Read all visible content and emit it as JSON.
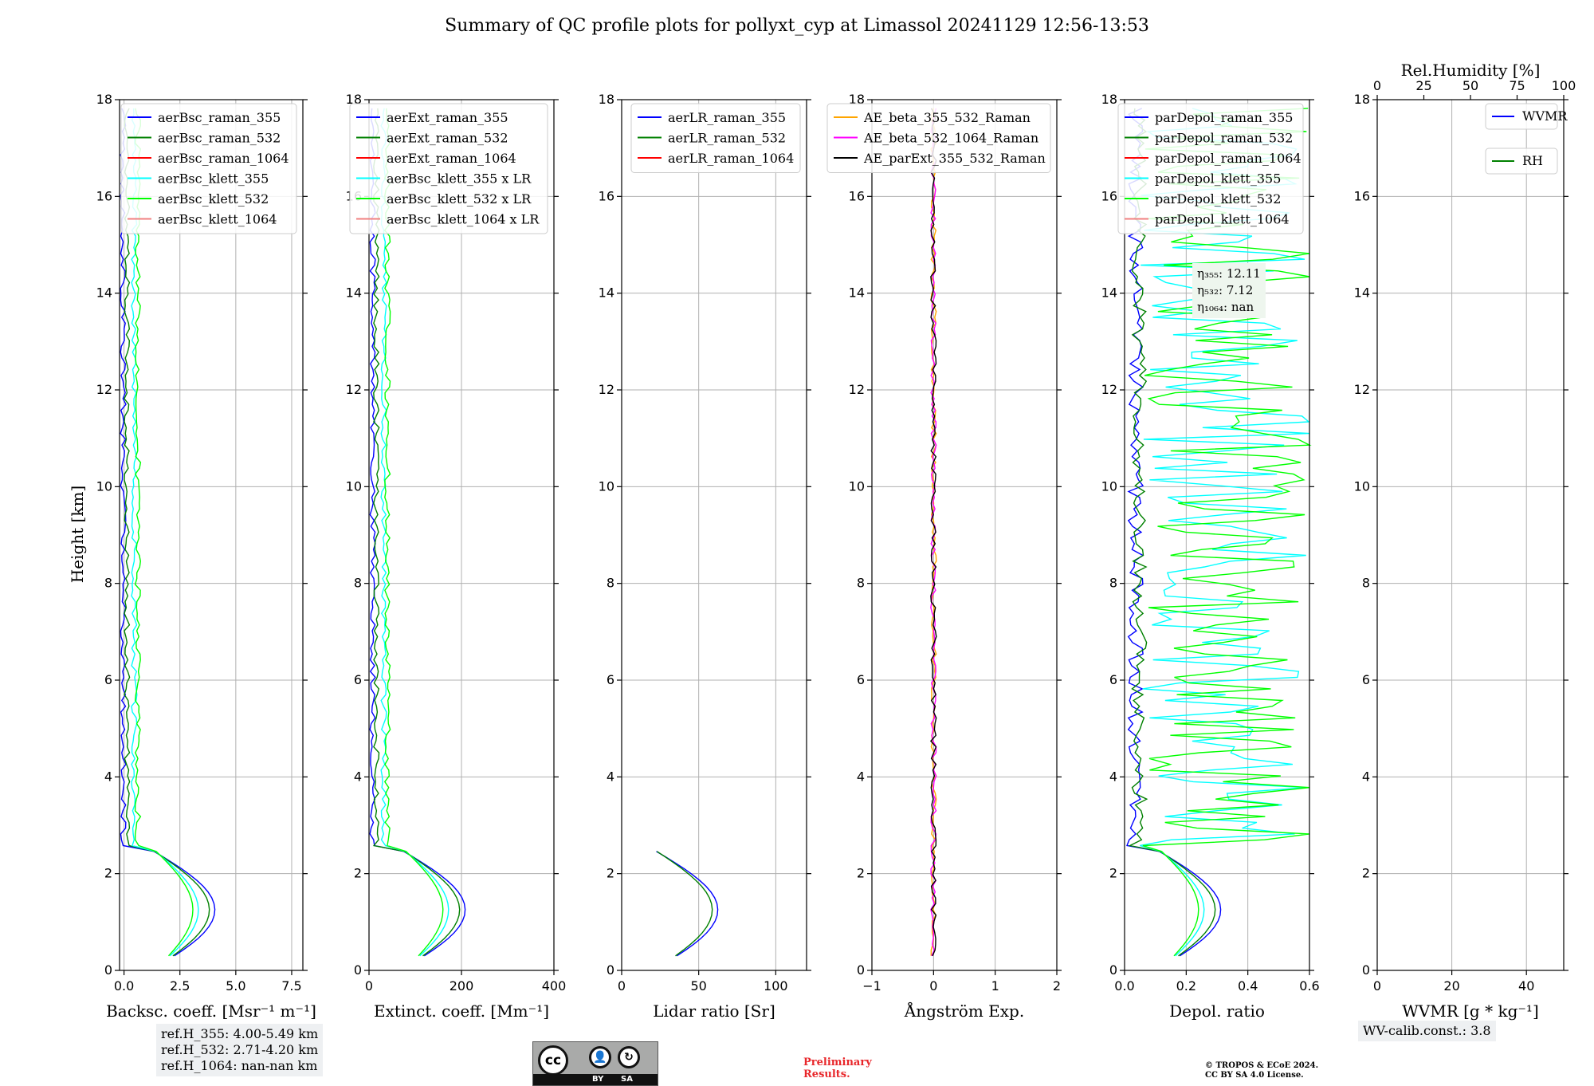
{
  "figure": {
    "title": "Summary of QC profile plots for pollyxt_cyp at Limassol 20241129 12:56-13:53",
    "ylabel": "Height [km]",
    "ref_heights": [
      "ref.H_355: 4.00-5.49 km",
      "ref.H_532: 2.71-4.20 km",
      "ref.H_1064: nan-nan km"
    ],
    "eta": [
      "η₃₅₅: 12.11",
      "η₅₃₂: 7.12",
      "η₁₀₆₄: nan"
    ],
    "wv_calib": "WV-calib.const.: 3.8",
    "preliminary": [
      "Preliminary",
      "Results."
    ],
    "copyright": [
      "© TROPOS & ECoE 2024.",
      "CC BY SA 4.0 License."
    ],
    "license_badge": {
      "cc": "cc",
      "by": "BY",
      "sa": "SA"
    }
  },
  "chart_data": [
    {
      "type": "line",
      "xlabel": "Backsc. coeff. [Msr⁻¹ m⁻¹]",
      "xlim": [
        -0.2,
        8.0
      ],
      "xticks": [
        0,
        2.5,
        5.0,
        7.5
      ],
      "xtick_labels": [
        "0.0",
        "2.5",
        "5.0",
        "7.5"
      ],
      "ylim": [
        0,
        18
      ],
      "yticks": [
        0,
        2,
        4,
        6,
        8,
        10,
        12,
        14,
        16,
        18
      ],
      "legend": "top-right",
      "series": [
        {
          "name": "aerBsc_raman_355",
          "color": "#0000ff"
        },
        {
          "name": "aerBsc_raman_532",
          "color": "#008000"
        },
        {
          "name": "aerBsc_raman_1064",
          "color": "#ff0000"
        },
        {
          "name": "aerBsc_klett_355",
          "color": "#00ffff"
        },
        {
          "name": "aerBsc_klett_532",
          "color": "#00ff00"
        },
        {
          "name": "aerBsc_klett_1064",
          "color": "#f08080"
        }
      ]
    },
    {
      "type": "line",
      "xlabel": "Extinct. coeff. [Mm⁻¹]",
      "xlim": [
        0,
        400
      ],
      "xticks": [
        0,
        200,
        400
      ],
      "xtick_labels": [
        "0",
        "200",
        "400"
      ],
      "ylim": [
        0,
        18
      ],
      "yticks": [
        0,
        2,
        4,
        6,
        8,
        10,
        12,
        14,
        16,
        18
      ],
      "legend": "top-right",
      "series": [
        {
          "name": "aerExt_raman_355",
          "color": "#0000ff"
        },
        {
          "name": "aerExt_raman_532",
          "color": "#008000"
        },
        {
          "name": "aerExt_raman_1064",
          "color": "#ff0000"
        },
        {
          "name": "aerBsc_klett_355 x LR",
          "color": "#00ffff"
        },
        {
          "name": "aerBsc_klett_532 x LR",
          "color": "#00ff00"
        },
        {
          "name": "aerBsc_klett_1064 x LR",
          "color": "#f08080"
        }
      ]
    },
    {
      "type": "line",
      "xlabel": "Lidar ratio [Sr]",
      "xlim": [
        0,
        120
      ],
      "xticks": [
        0,
        50,
        100
      ],
      "xtick_labels": [
        "0",
        "50",
        "100"
      ],
      "ylim": [
        0,
        18
      ],
      "yticks": [
        0,
        2,
        4,
        6,
        8,
        10,
        12,
        14,
        16,
        18
      ],
      "legend": "top-right",
      "series": [
        {
          "name": "aerLR_raman_355",
          "color": "#0000ff"
        },
        {
          "name": "aerLR_raman_532",
          "color": "#008000"
        },
        {
          "name": "aerLR_raman_1064",
          "color": "#ff0000"
        }
      ]
    },
    {
      "type": "line",
      "xlabel": "Ångström Exp.",
      "xlim": [
        -1,
        2
      ],
      "xticks": [
        -1,
        0,
        1,
        2
      ],
      "xtick_labels": [
        "−1",
        "0",
        "1",
        "2"
      ],
      "ylim": [
        0,
        18
      ],
      "yticks": [
        0,
        2,
        4,
        6,
        8,
        10,
        12,
        14,
        16,
        18
      ],
      "legend": "top-right",
      "series": [
        {
          "name": "AE_beta_355_532_Raman",
          "color": "#ffa500"
        },
        {
          "name": "AE_beta_532_1064_Raman",
          "color": "#ff00ff"
        },
        {
          "name": "AE_parExt_355_532_Raman",
          "color": "#000000"
        }
      ]
    },
    {
      "type": "line",
      "xlabel": "Depol. ratio",
      "xlim": [
        0,
        0.6
      ],
      "xticks": [
        0,
        0.2,
        0.4,
        0.6
      ],
      "xtick_labels": [
        "0.0",
        "0.2",
        "0.4",
        "0.6"
      ],
      "ylim": [
        0,
        18
      ],
      "yticks": [
        0,
        2,
        4,
        6,
        8,
        10,
        12,
        14,
        16,
        18
      ],
      "legend": "top-right",
      "series": [
        {
          "name": "parDepol_raman_355",
          "color": "#0000ff"
        },
        {
          "name": "parDepol_raman_532",
          "color": "#008000"
        },
        {
          "name": "parDepol_raman_1064",
          "color": "#ff0000"
        },
        {
          "name": "parDepol_klett_355",
          "color": "#00ffff"
        },
        {
          "name": "parDepol_klett_532",
          "color": "#00ff00"
        },
        {
          "name": "parDepol_klett_1064",
          "color": "#f08080"
        }
      ]
    },
    {
      "type": "line",
      "xlabel": "WVMR [g * kg⁻¹]",
      "xlim": [
        0,
        50
      ],
      "xticks": [
        0,
        20,
        40
      ],
      "xtick_labels": [
        "0",
        "20",
        "40"
      ],
      "top_xlabel": "Rel.Humidity [%]",
      "top_xlim": [
        0,
        100
      ],
      "top_xticks": [
        0,
        25,
        50,
        75,
        100
      ],
      "ylim": [
        0,
        18
      ],
      "yticks": [
        0,
        2,
        4,
        6,
        8,
        10,
        12,
        14,
        16,
        18
      ],
      "legend": "top-right",
      "series": [
        {
          "name": "WVMR",
          "color": "#0000ff"
        },
        {
          "name": "RH",
          "color": "#008000"
        }
      ]
    }
  ]
}
